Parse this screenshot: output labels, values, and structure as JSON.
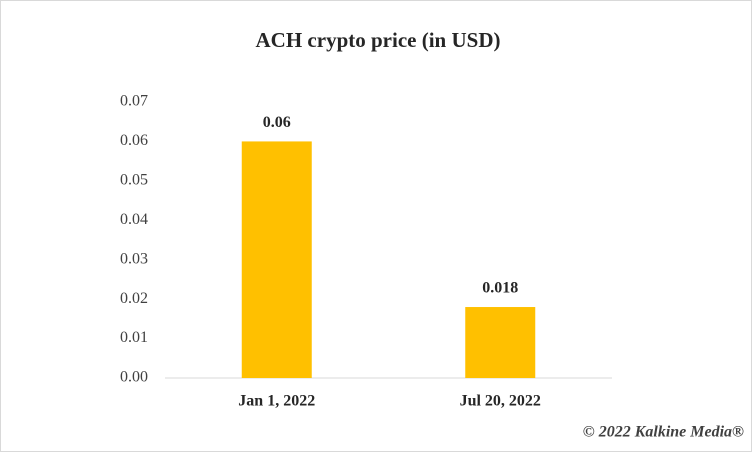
{
  "chart_data": {
    "type": "bar",
    "title": "ACH crypto price (in USD)",
    "categories": [
      "Jan 1, 2022",
      "Jul 20, 2022"
    ],
    "values": [
      0.06,
      0.018
    ],
    "color": "#ffc000",
    "ylim": [
      0,
      0.07
    ],
    "yticks": [
      {
        "value": 0,
        "label": "0.00"
      },
      0.01,
      0.02,
      0.03,
      0.04,
      0.05,
      0.06,
      0.07
    ],
    "grid": false,
    "credit": "© 2022 Kalkine Media®"
  }
}
